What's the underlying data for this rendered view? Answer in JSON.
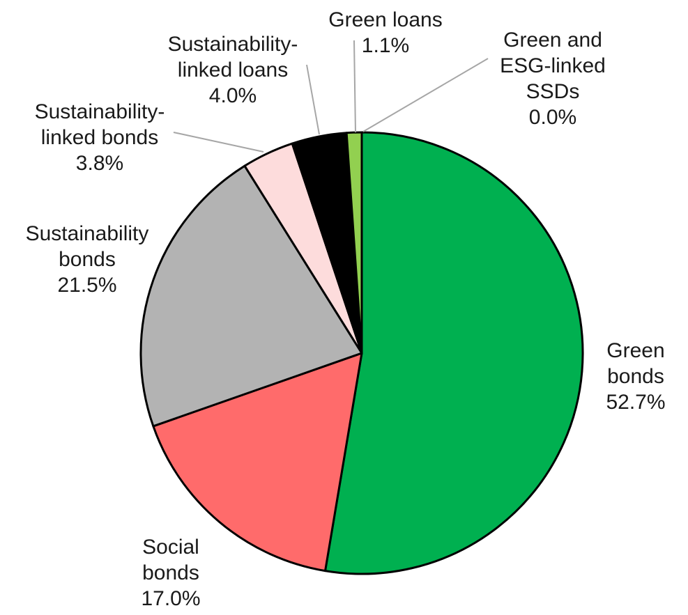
{
  "chart_data": {
    "type": "pie",
    "start_angle_deg": 0,
    "direction": "clockwise",
    "slices": [
      {
        "name": "Green bonds",
        "value": 52.7,
        "label_lines": [
          "Green",
          "bonds"
        ],
        "value_label": "52.7%",
        "color": "#00b050"
      },
      {
        "name": "Social bonds",
        "value": 17.0,
        "label_lines": [
          "Social",
          "bonds"
        ],
        "value_label": "17.0%",
        "color": "#ff6b6b"
      },
      {
        "name": "Sustainability bonds",
        "value": 21.5,
        "label_lines": [
          "Sustainability",
          "bonds"
        ],
        "value_label": "21.5%",
        "color": "#b3b3b3"
      },
      {
        "name": "Sustainability-linked bonds",
        "value": 3.8,
        "label_lines": [
          "Sustainability-",
          "linked bonds"
        ],
        "value_label": "3.8%",
        "color": "#fddcdc"
      },
      {
        "name": "Sustainability-linked loans",
        "value": 4.0,
        "label_lines": [
          "Sustainability-",
          "linked loans"
        ],
        "value_label": "4.0%",
        "color": "#000000"
      },
      {
        "name": "Green loans",
        "value": 1.1,
        "label_lines": [
          "Green loans"
        ],
        "value_label": "1.1%",
        "color": "#92d050"
      },
      {
        "name": "Green and ESG-linked SSDs",
        "value": 0.0,
        "label_lines": [
          "Green and",
          "ESG-linked",
          "SSDs"
        ],
        "value_label": "0.0%",
        "color": "#00b050"
      }
    ]
  }
}
